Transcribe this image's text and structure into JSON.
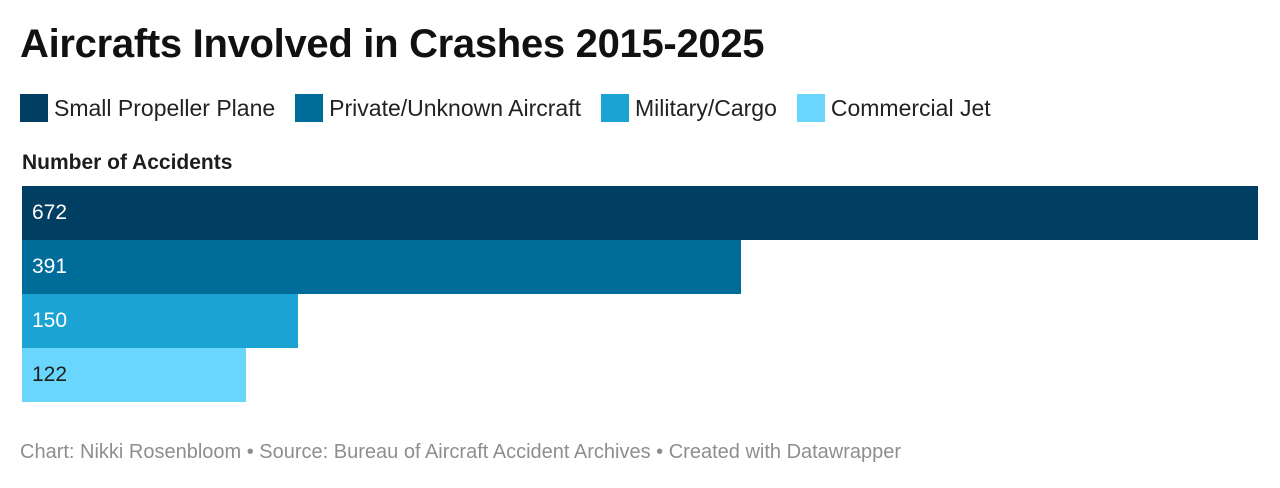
{
  "title": "Aircrafts Involved in Crashes 2015-2025",
  "footer": "Chart: Nikki Rosenbloom • Source: Bureau of Aircraft Accident Archives • Created with Datawrapper",
  "chart_data": {
    "type": "bar",
    "orientation": "horizontal",
    "ylabel": "Number of Accidents",
    "categories": [
      "Small Propeller Plane",
      "Private/Unknown Aircraft",
      "Military/Cargo",
      "Commercial Jet"
    ],
    "values": [
      672,
      391,
      150,
      122
    ],
    "value_labels": [
      "672",
      "391",
      "150",
      "122"
    ],
    "colors": [
      "#003f62",
      "#006c99",
      "#1ba3d3",
      "#6ad6fe"
    ],
    "label_colors": [
      "#ffffff",
      "#ffffff",
      "#ffffff",
      "#1d1d1d"
    ],
    "xlim": [
      0,
      672
    ],
    "legend_position": "top-left",
    "grid": false
  }
}
